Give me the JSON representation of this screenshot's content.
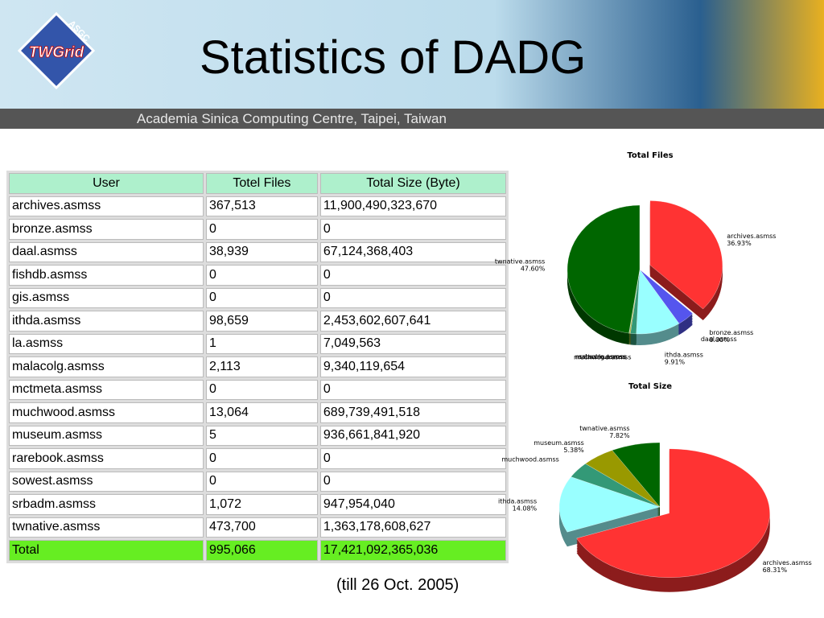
{
  "header": {
    "title": "Statistics of DADG",
    "subtitle": "Academia Sinica Computing Centre, Taipei, Taiwan",
    "logo": "TWGrid",
    "logo_ring": "ASGC"
  },
  "table": {
    "columns": [
      "User",
      "Totel Files",
      "Total Size (Byte)"
    ],
    "rows": [
      [
        "archives.asmss",
        "367,513",
        "11,900,490,323,670"
      ],
      [
        "bronze.asmss",
        "0",
        "0"
      ],
      [
        "daal.asmss",
        "38,939",
        "67,124,368,403"
      ],
      [
        "fishdb.asmss",
        "0",
        "0"
      ],
      [
        "gis.asmss",
        "0",
        "0"
      ],
      [
        "ithda.asmss",
        "98,659",
        "2,453,602,607,641"
      ],
      [
        "la.asmss",
        "1",
        "7,049,563"
      ],
      [
        "malacolg.asmss",
        "2,113",
        "9,340,119,654"
      ],
      [
        "mctmeta.asmss",
        "0",
        "0"
      ],
      [
        "muchwood.asmss",
        "13,064",
        "689,739,491,518"
      ],
      [
        "museum.asmss",
        "5",
        "936,661,841,920"
      ],
      [
        "rarebook.asmss",
        "0",
        "0"
      ],
      [
        "sowest.asmss",
        "0",
        "0"
      ],
      [
        "srbadm.asmss",
        "1,072",
        "947,954,040"
      ],
      [
        "twnative.asmss",
        "473,700",
        "1,363,178,608,627"
      ]
    ],
    "total": [
      "Total",
      "995,066",
      "17,421,092,365,036"
    ]
  },
  "note": "(till 26 Oct. 2005)",
  "chart_data": [
    {
      "type": "pie",
      "title": "Total Files",
      "categories": [
        "archives.asmss",
        "bronze.asmss",
        "daal.asmss",
        "ithda.asmss",
        "muchwood.asmss",
        "malacolg.asmss",
        "srbadm.asmss",
        "twnative.asmss"
      ],
      "values": [
        36.93,
        0.0,
        3.91,
        9.91,
        1.31,
        0.21,
        0.11,
        47.6
      ],
      "value_labels": [
        "36.93%",
        "0.00%",
        null,
        "9.91%",
        null,
        null,
        null,
        "47.60%"
      ],
      "colors": [
        "#ff3333",
        "#3355cc",
        "#5555ee",
        "#99ffff",
        "#339977",
        "#999900",
        "#66aa66",
        "#006600"
      ]
    },
    {
      "type": "pie",
      "title": "Total Size",
      "categories": [
        "archives.asmss",
        "ithda.asmss",
        "muchwood.asmss",
        "museum.asmss",
        "twnative.asmss"
      ],
      "values": [
        68.31,
        14.08,
        3.96,
        5.38,
        7.82
      ],
      "value_labels": [
        "68.31%",
        "14.08%",
        null,
        "5.38%",
        "7.82%"
      ],
      "colors": [
        "#ff3333",
        "#99ffff",
        "#339977",
        "#999900",
        "#006600"
      ]
    }
  ]
}
